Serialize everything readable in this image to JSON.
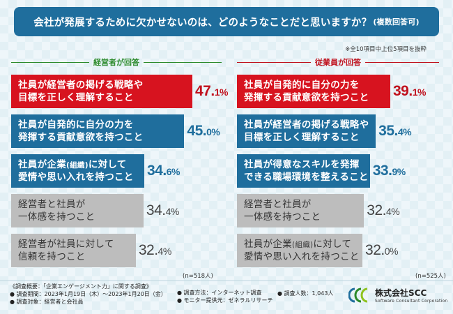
{
  "title": {
    "main": "会社が発展するために欠かせないのは、どのようなことだと思いますか？",
    "sub": "(複数回答可)"
  },
  "note": "※全10項目中上位5項目を抜粋",
  "colors": {
    "red": "#d7131f",
    "blue": "#1f6e9d",
    "gray": "#bdbdbd",
    "green": "#2b8a2b"
  },
  "chart_data": [
    {
      "type": "bar",
      "title": "経営者が回答",
      "sample": "(n=518人)",
      "unit": "%",
      "categories": [
        "社員が経営者の掲げる戦略や目標を正しく理解すること",
        "社員が自発的に自分の力を発揮する貢献意欲を持つこと",
        "社員が企業(組織)に対して愛情や思い入れを持つこと",
        "経営者と社員が一体感を持つこと",
        "経営者が社員に対して信頼を持つこと"
      ],
      "values": [
        47.1,
        45.0,
        34.6,
        34.4,
        32.4
      ],
      "bars": [
        {
          "line1": "社員が経営者の掲げる戦略や",
          "line2": "目標を正しく理解すること",
          "whole": "47.",
          "dec": "1%",
          "style": "red"
        },
        {
          "line1": "社員が自発的に自分の力を",
          "line2": "発揮する貢献意欲を持つこと",
          "whole": "45.",
          "dec": "0%",
          "style": "blue"
        },
        {
          "line1a": "社員が企業",
          "line1b": "(組織)",
          "line1c": "に対して",
          "line2": "愛情や思い入れを持つこと",
          "whole": "34.",
          "dec": "6%",
          "style": "blue"
        },
        {
          "line1": "経営者と社員が",
          "line2": "一体感を持つこと",
          "whole": "34.",
          "dec": "4%",
          "style": "gray"
        },
        {
          "line1": "経営者が社員に対して",
          "line2": "信頼を持つこと",
          "whole": "32.",
          "dec": "4%",
          "style": "gray"
        }
      ]
    },
    {
      "type": "bar",
      "title": "従業員が回答",
      "sample": "(n=525人)",
      "unit": "%",
      "categories": [
        "社員が自発的に自分の力を発揮する貢献意欲を持つこと",
        "社員が経営者の掲げる戦略や目標を正しく理解すること",
        "社員が得意なスキルを発揮できる職場環境を整えること",
        "経営者と社員が一体感を持つこと",
        "社員が企業(組織)に対して愛情や思い入れを持つこと"
      ],
      "values": [
        39.1,
        35.4,
        33.9,
        32.4,
        32.0
      ],
      "bars": [
        {
          "line1": "社員が自発的に自分の力を",
          "line2": "発揮する貢献意欲を持つこと",
          "whole": "39.",
          "dec": "1%",
          "style": "red"
        },
        {
          "line1": "社員が経営者の掲げる戦略や",
          "line2": "目標を正しく理解すること",
          "whole": "35.",
          "dec": "4%",
          "style": "blue"
        },
        {
          "line1": "社員が得意なスキルを発揮",
          "line2": "できる職場環境を整えること",
          "whole": "33.",
          "dec": "9%",
          "style": "blue"
        },
        {
          "line1": "経営者と社員が",
          "line2": "一体感を持つこと",
          "whole": "32.",
          "dec": "4%",
          "style": "gray"
        },
        {
          "line1a": "社員が企業",
          "line1b": "(組織)",
          "line1c": "に対して",
          "line2": "愛情や思い入れを持つこと",
          "whole": "32.",
          "dec": "0%",
          "style": "gray"
        }
      ]
    }
  ],
  "footer": {
    "l1": "《調査概要：「企業エンゲージメント力」に関する調査》",
    "l2": "● 調査期間：2023年1月19日（木）～2023年1月20日（金）",
    "l3": "● 調査対象：経営者と会社員",
    "m1": "● 調査方法：インターネット調査",
    "m2": "● モニター提供元：ゼネラルリサーチ",
    "r1": "● 調査人数：1,043人"
  },
  "logo": {
    "name": "株式会社SCC",
    "sub": "Software Consultant Corporation"
  }
}
